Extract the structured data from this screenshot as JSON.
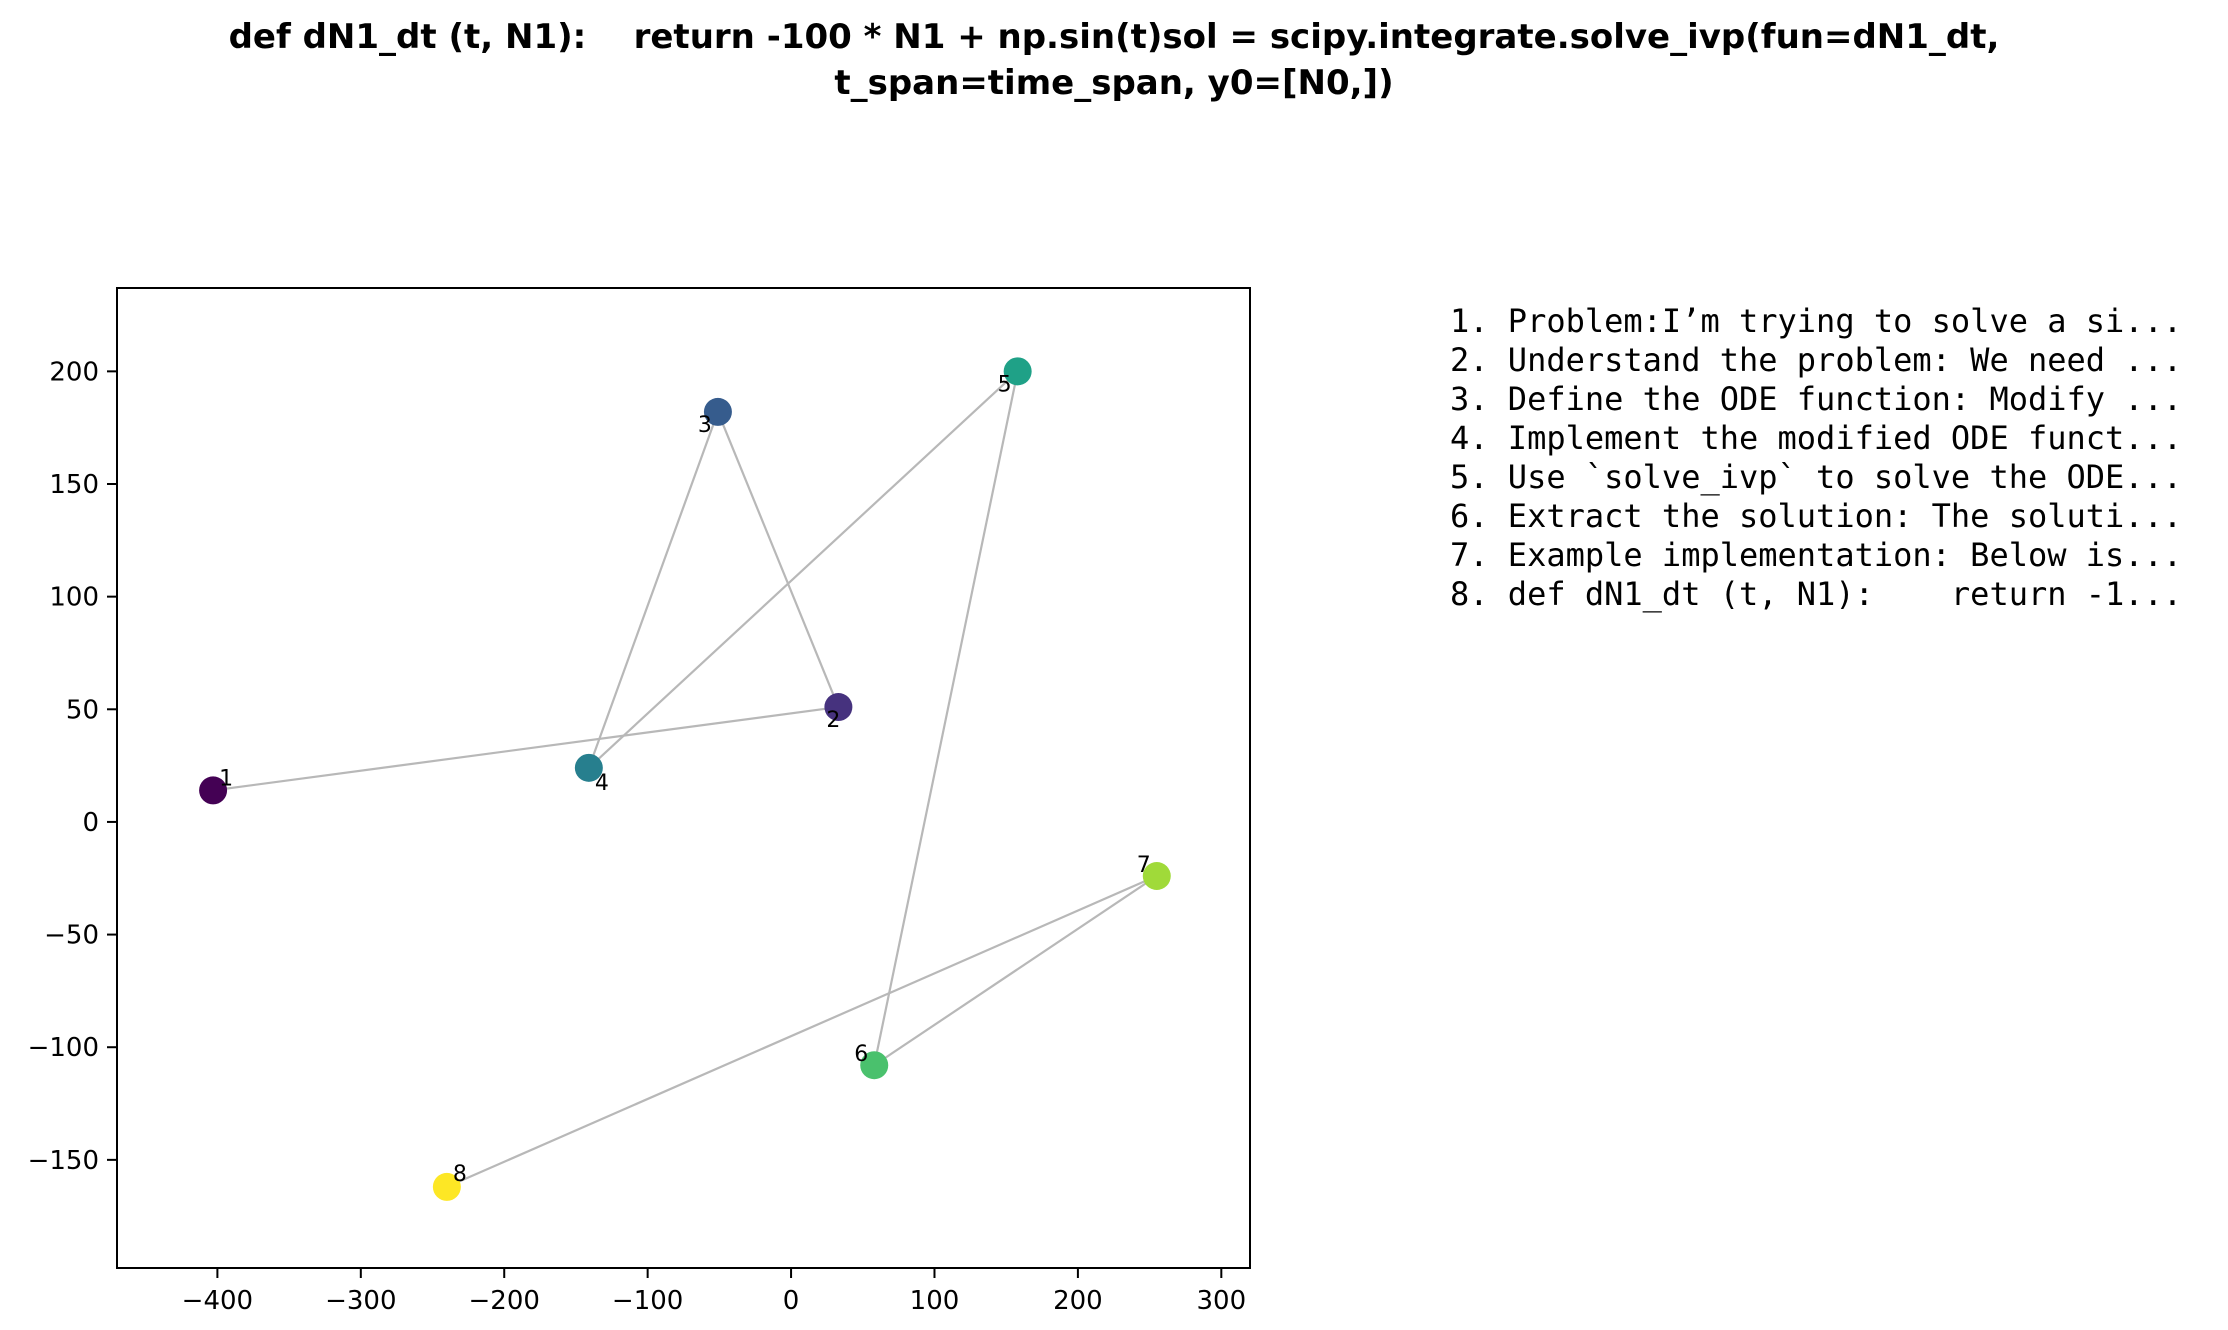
{
  "chart_data": {
    "type": "scatter",
    "title_lines": [
      "def dN1_dt (t, N1):    return -100 * N1 + np.sin(t)sol = scipy.integrate.solve_ivp(fun=dN1_dt,",
      "t_span=time_span, y0=[N0,])"
    ],
    "xlabel": "",
    "ylabel": "",
    "xlim": [
      -470,
      320
    ],
    "ylim": [
      -198,
      237
    ],
    "x_ticks": [
      -400,
      -300,
      -200,
      -100,
      0,
      100,
      200,
      300
    ],
    "y_ticks": [
      -150,
      -100,
      -50,
      0,
      50,
      100,
      150,
      200
    ],
    "x_tick_labels": [
      "−400",
      "−300",
      "−200",
      "−100",
      "0",
      "100",
      "200",
      "300"
    ],
    "y_tick_labels": [
      "−150",
      "−100",
      "−50",
      "0",
      "50",
      "100",
      "150",
      "200"
    ],
    "grid": false,
    "colormap": "viridis",
    "edge_color": "#b8b8b8",
    "points": [
      {
        "label": "1",
        "x": -403,
        "y": 14,
        "color": "#440154"
      },
      {
        "label": "2",
        "x": 33,
        "y": 51,
        "color": "#46327e"
      },
      {
        "label": "3",
        "x": -51,
        "y": 182,
        "color": "#365c8d"
      },
      {
        "label": "4",
        "x": -141,
        "y": 24,
        "color": "#277f8e"
      },
      {
        "label": "5",
        "x": 158,
        "y": 200,
        "color": "#1fa187"
      },
      {
        "label": "6",
        "x": 58,
        "y": -108,
        "color": "#4ac16d"
      },
      {
        "label": "7",
        "x": 255,
        "y": -24,
        "color": "#a0da39"
      },
      {
        "label": "8",
        "x": -240,
        "y": -162,
        "color": "#fde725"
      }
    ],
    "edges": [
      [
        1,
        2
      ],
      [
        2,
        3
      ],
      [
        3,
        4
      ],
      [
        4,
        5
      ],
      [
        5,
        6
      ],
      [
        6,
        7
      ],
      [
        7,
        8
      ]
    ],
    "legend_items": [
      "1. Problem:I’m trying to solve a si...",
      "2. Understand the problem: We need ...",
      "3. Define the ODE function: Modify ...",
      "4. Implement the modified ODE funct...",
      "5. Use `solve_ivp` to solve the ODE...",
      "6. Extract the solution: The soluti...",
      "7. Example implementation: Below is...",
      "8. def dN1_dt (t, N1):    return -1..."
    ],
    "legend_placement": "right"
  }
}
